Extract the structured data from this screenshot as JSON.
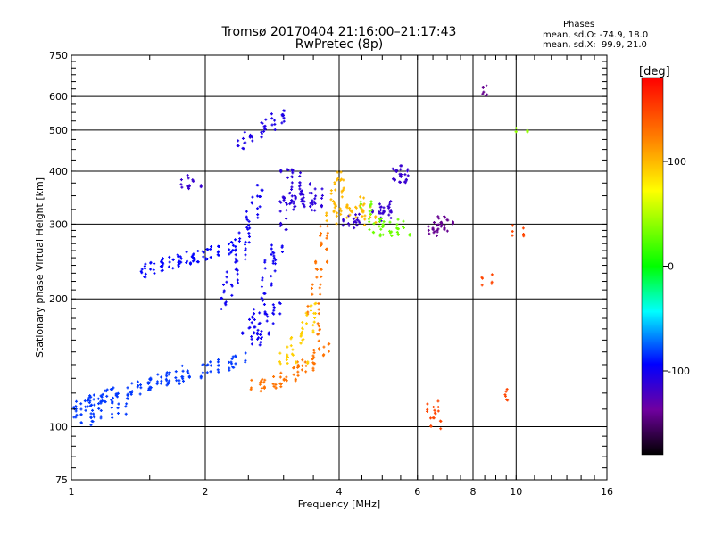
{
  "chart_data": {
    "type": "scatter",
    "title": "Tromsø 20170404 21:16:00–21:17:43",
    "subtitle": "RwPretec (8p)",
    "legend": {
      "heading": "Phases",
      "line_o": "mean, sd,O: -74.9, 18.0",
      "line_x": "mean, sd,X:  99.9, 21.0"
    },
    "xlabel": "Frequency [MHz]",
    "ylabel": "Stationary phase Virtual Height [km]",
    "x_scale": "log",
    "y_scale": "log",
    "xlim": [
      1,
      16
    ],
    "ylim": [
      75,
      750
    ],
    "grid": true,
    "x_ticks": [
      1,
      2,
      4,
      6,
      8,
      10,
      16
    ],
    "y_ticks": [
      75,
      100,
      200,
      300,
      400,
      500,
      600,
      750
    ],
    "colorbar": {
      "label": "[deg]",
      "range": [
        -180,
        180
      ],
      "ticks": [
        100,
        0,
        -100
      ]
    },
    "series": [
      {
        "phase_deg": -80,
        "points": [
          [
            1.02,
            108
          ],
          [
            1.05,
            112
          ],
          [
            1.08,
            110
          ],
          [
            1.1,
            115
          ],
          [
            1.12,
            113
          ],
          [
            1.15,
            116
          ],
          [
            1.18,
            118
          ],
          [
            1.2,
            117
          ],
          [
            1.22,
            120
          ],
          [
            1.25,
            119
          ],
          [
            1.3,
            122
          ],
          [
            1.35,
            120
          ],
          [
            1.4,
            123
          ],
          [
            1.45,
            124
          ],
          [
            1.5,
            126
          ],
          [
            1.55,
            127
          ],
          [
            1.6,
            129
          ],
          [
            1.65,
            131
          ],
          [
            1.7,
            130
          ],
          [
            1.75,
            132
          ],
          [
            1.8,
            135
          ],
          [
            1.9,
            134
          ],
          [
            2.0,
            137
          ],
          [
            2.1,
            138
          ],
          [
            2.2,
            140
          ],
          [
            2.3,
            142
          ],
          [
            2.4,
            145
          ],
          [
            1.08,
            104
          ],
          [
            1.12,
            106
          ],
          [
            1.2,
            108
          ],
          [
            1.3,
            110
          ]
        ]
      },
      {
        "phase_deg": -90,
        "points": [
          [
            1.45,
            232
          ],
          [
            1.5,
            236
          ],
          [
            1.55,
            238
          ],
          [
            1.6,
            240
          ],
          [
            1.65,
            242
          ],
          [
            1.7,
            245
          ],
          [
            1.75,
            247
          ],
          [
            1.8,
            249
          ],
          [
            1.85,
            251
          ],
          [
            1.9,
            252
          ],
          [
            1.95,
            254
          ],
          [
            2.0,
            255
          ],
          [
            2.1,
            258
          ],
          [
            2.2,
            262
          ],
          [
            2.3,
            265
          ],
          [
            2.4,
            268
          ]
        ]
      },
      {
        "phase_deg": -95,
        "points": [
          [
            2.2,
            195
          ],
          [
            2.25,
            210
          ],
          [
            2.3,
            225
          ],
          [
            2.35,
            240
          ],
          [
            2.4,
            255
          ],
          [
            2.45,
            280
          ],
          [
            2.5,
            300
          ],
          [
            2.55,
            320
          ],
          [
            2.6,
            340
          ],
          [
            2.65,
            360
          ],
          [
            2.5,
            170
          ],
          [
            2.55,
            175
          ],
          [
            2.6,
            180
          ],
          [
            2.65,
            190
          ],
          [
            2.7,
            200
          ],
          [
            2.75,
            220
          ],
          [
            2.8,
            240
          ],
          [
            2.85,
            250
          ],
          [
            2.9,
            260
          ],
          [
            2.6,
            160
          ],
          [
            2.65,
            165
          ],
          [
            2.7,
            170
          ],
          [
            2.8,
            180
          ],
          [
            2.9,
            190
          ]
        ]
      },
      {
        "phase_deg": -100,
        "points": [
          [
            2.4,
            465
          ],
          [
            2.5,
            480
          ],
          [
            2.6,
            495
          ],
          [
            2.7,
            505
          ],
          [
            2.8,
            515
          ],
          [
            2.9,
            530
          ],
          [
            3.0,
            540
          ]
        ]
      },
      {
        "phase_deg": -105,
        "points": [
          [
            3.0,
            330
          ],
          [
            3.05,
            345
          ],
          [
            3.1,
            355
          ],
          [
            3.15,
            340
          ],
          [
            3.2,
            360
          ],
          [
            3.25,
            330
          ],
          [
            3.3,
            350
          ],
          [
            3.35,
            365
          ],
          [
            3.4,
            345
          ],
          [
            3.5,
            330
          ],
          [
            3.55,
            340
          ],
          [
            3.6,
            355
          ],
          [
            3.0,
            300
          ],
          [
            3.05,
            410
          ],
          [
            3.1,
            395
          ],
          [
            3.2,
            385
          ]
        ]
      },
      {
        "phase_deg": -110,
        "points": [
          [
            1.8,
            375
          ],
          [
            1.85,
            380
          ],
          [
            1.9,
            378
          ]
        ]
      },
      {
        "phase_deg": -110,
        "points": [
          [
            5.4,
            395
          ],
          [
            5.45,
            400
          ],
          [
            5.5,
            390
          ],
          [
            5.55,
            385
          ],
          [
            5.6,
            400
          ],
          [
            4.9,
            330
          ],
          [
            5.0,
            320
          ],
          [
            5.05,
            325
          ],
          [
            5.1,
            315
          ],
          [
            5.2,
            330
          ],
          [
            4.2,
            300
          ],
          [
            4.3,
            305
          ],
          [
            4.4,
            310
          ]
        ]
      },
      {
        "phase_deg": -135,
        "points": [
          [
            6.5,
            290
          ],
          [
            6.6,
            295
          ],
          [
            6.7,
            300
          ],
          [
            6.8,
            305
          ],
          [
            6.9,
            298
          ],
          [
            7.0,
            310
          ],
          [
            8.5,
            620
          ]
        ]
      },
      {
        "phase_deg": 130,
        "points": [
          [
            2.6,
            125
          ],
          [
            2.7,
            126
          ],
          [
            2.8,
            127
          ],
          [
            2.9,
            128
          ],
          [
            3.0,
            130
          ],
          [
            3.1,
            132
          ],
          [
            3.2,
            135
          ],
          [
            3.3,
            138
          ],
          [
            3.4,
            140
          ],
          [
            3.5,
            145
          ],
          [
            3.6,
            150
          ],
          [
            3.7,
            155
          ],
          [
            3.6,
            170
          ],
          [
            3.5,
            190
          ],
          [
            3.55,
            210
          ],
          [
            3.6,
            230
          ],
          [
            3.65,
            250
          ],
          [
            3.7,
            270
          ],
          [
            3.7,
            290
          ]
        ]
      },
      {
        "phase_deg": 90,
        "points": [
          [
            3.2,
            160
          ],
          [
            3.3,
            165
          ],
          [
            3.4,
            172
          ],
          [
            3.45,
            180
          ],
          [
            3.5,
            190
          ],
          [
            3.3,
            145
          ],
          [
            3.1,
            150
          ],
          [
            3.0,
            145
          ]
        ]
      },
      {
        "phase_deg": 100,
        "points": [
          [
            3.85,
            310
          ],
          [
            3.9,
            330
          ],
          [
            3.95,
            350
          ],
          [
            4.0,
            370
          ],
          [
            4.0,
            390
          ],
          [
            4.05,
            340
          ],
          [
            4.1,
            320
          ],
          [
            4.3,
            320
          ],
          [
            4.4,
            330
          ],
          [
            4.5,
            340
          ],
          [
            4.6,
            320
          ],
          [
            4.7,
            305
          ]
        ]
      },
      {
        "phase_deg": 30,
        "points": [
          [
            4.6,
            330
          ],
          [
            4.7,
            325
          ],
          [
            4.8,
            300
          ],
          [
            4.9,
            292
          ],
          [
            5.0,
            300
          ],
          [
            5.1,
            290
          ],
          [
            5.3,
            295
          ],
          [
            5.5,
            300
          ],
          [
            5.6,
            290
          ]
        ]
      },
      {
        "phase_deg": 150,
        "points": [
          [
            6.5,
            112
          ],
          [
            6.55,
            108
          ],
          [
            6.6,
            102
          ],
          [
            8.6,
            222
          ],
          [
            9.5,
            119
          ],
          [
            10.1,
            290
          ]
        ]
      },
      {
        "phase_deg": 40,
        "points": [
          [
            10.3,
            510
          ]
        ]
      }
    ]
  }
}
